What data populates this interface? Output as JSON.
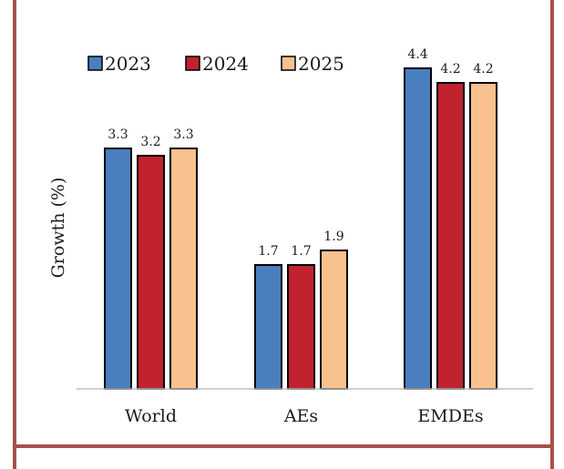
{
  "chart_data": {
    "type": "bar",
    "categories": [
      "World",
      "AEs",
      "EMDEs"
    ],
    "series": [
      {
        "name": "2023",
        "values": [
          3.3,
          1.7,
          4.4
        ],
        "color": "#4a7ebf"
      },
      {
        "name": "2024",
        "values": [
          3.2,
          1.7,
          4.2
        ],
        "color": "#c0222e"
      },
      {
        "name": "2025",
        "values": [
          3.3,
          1.9,
          4.2
        ],
        "color": "#f8c18e"
      }
    ],
    "data_labels": [
      [
        "3.3",
        "3.2",
        "3.3"
      ],
      [
        "1.7",
        "1.7",
        "1.9"
      ],
      [
        "4.4",
        "4.2",
        "4.2"
      ]
    ],
    "ylabel": "Growth (%)",
    "xlabel": "",
    "ylim": [
      0,
      5.0
    ],
    "grid": false,
    "legend_position": "top-left"
  }
}
